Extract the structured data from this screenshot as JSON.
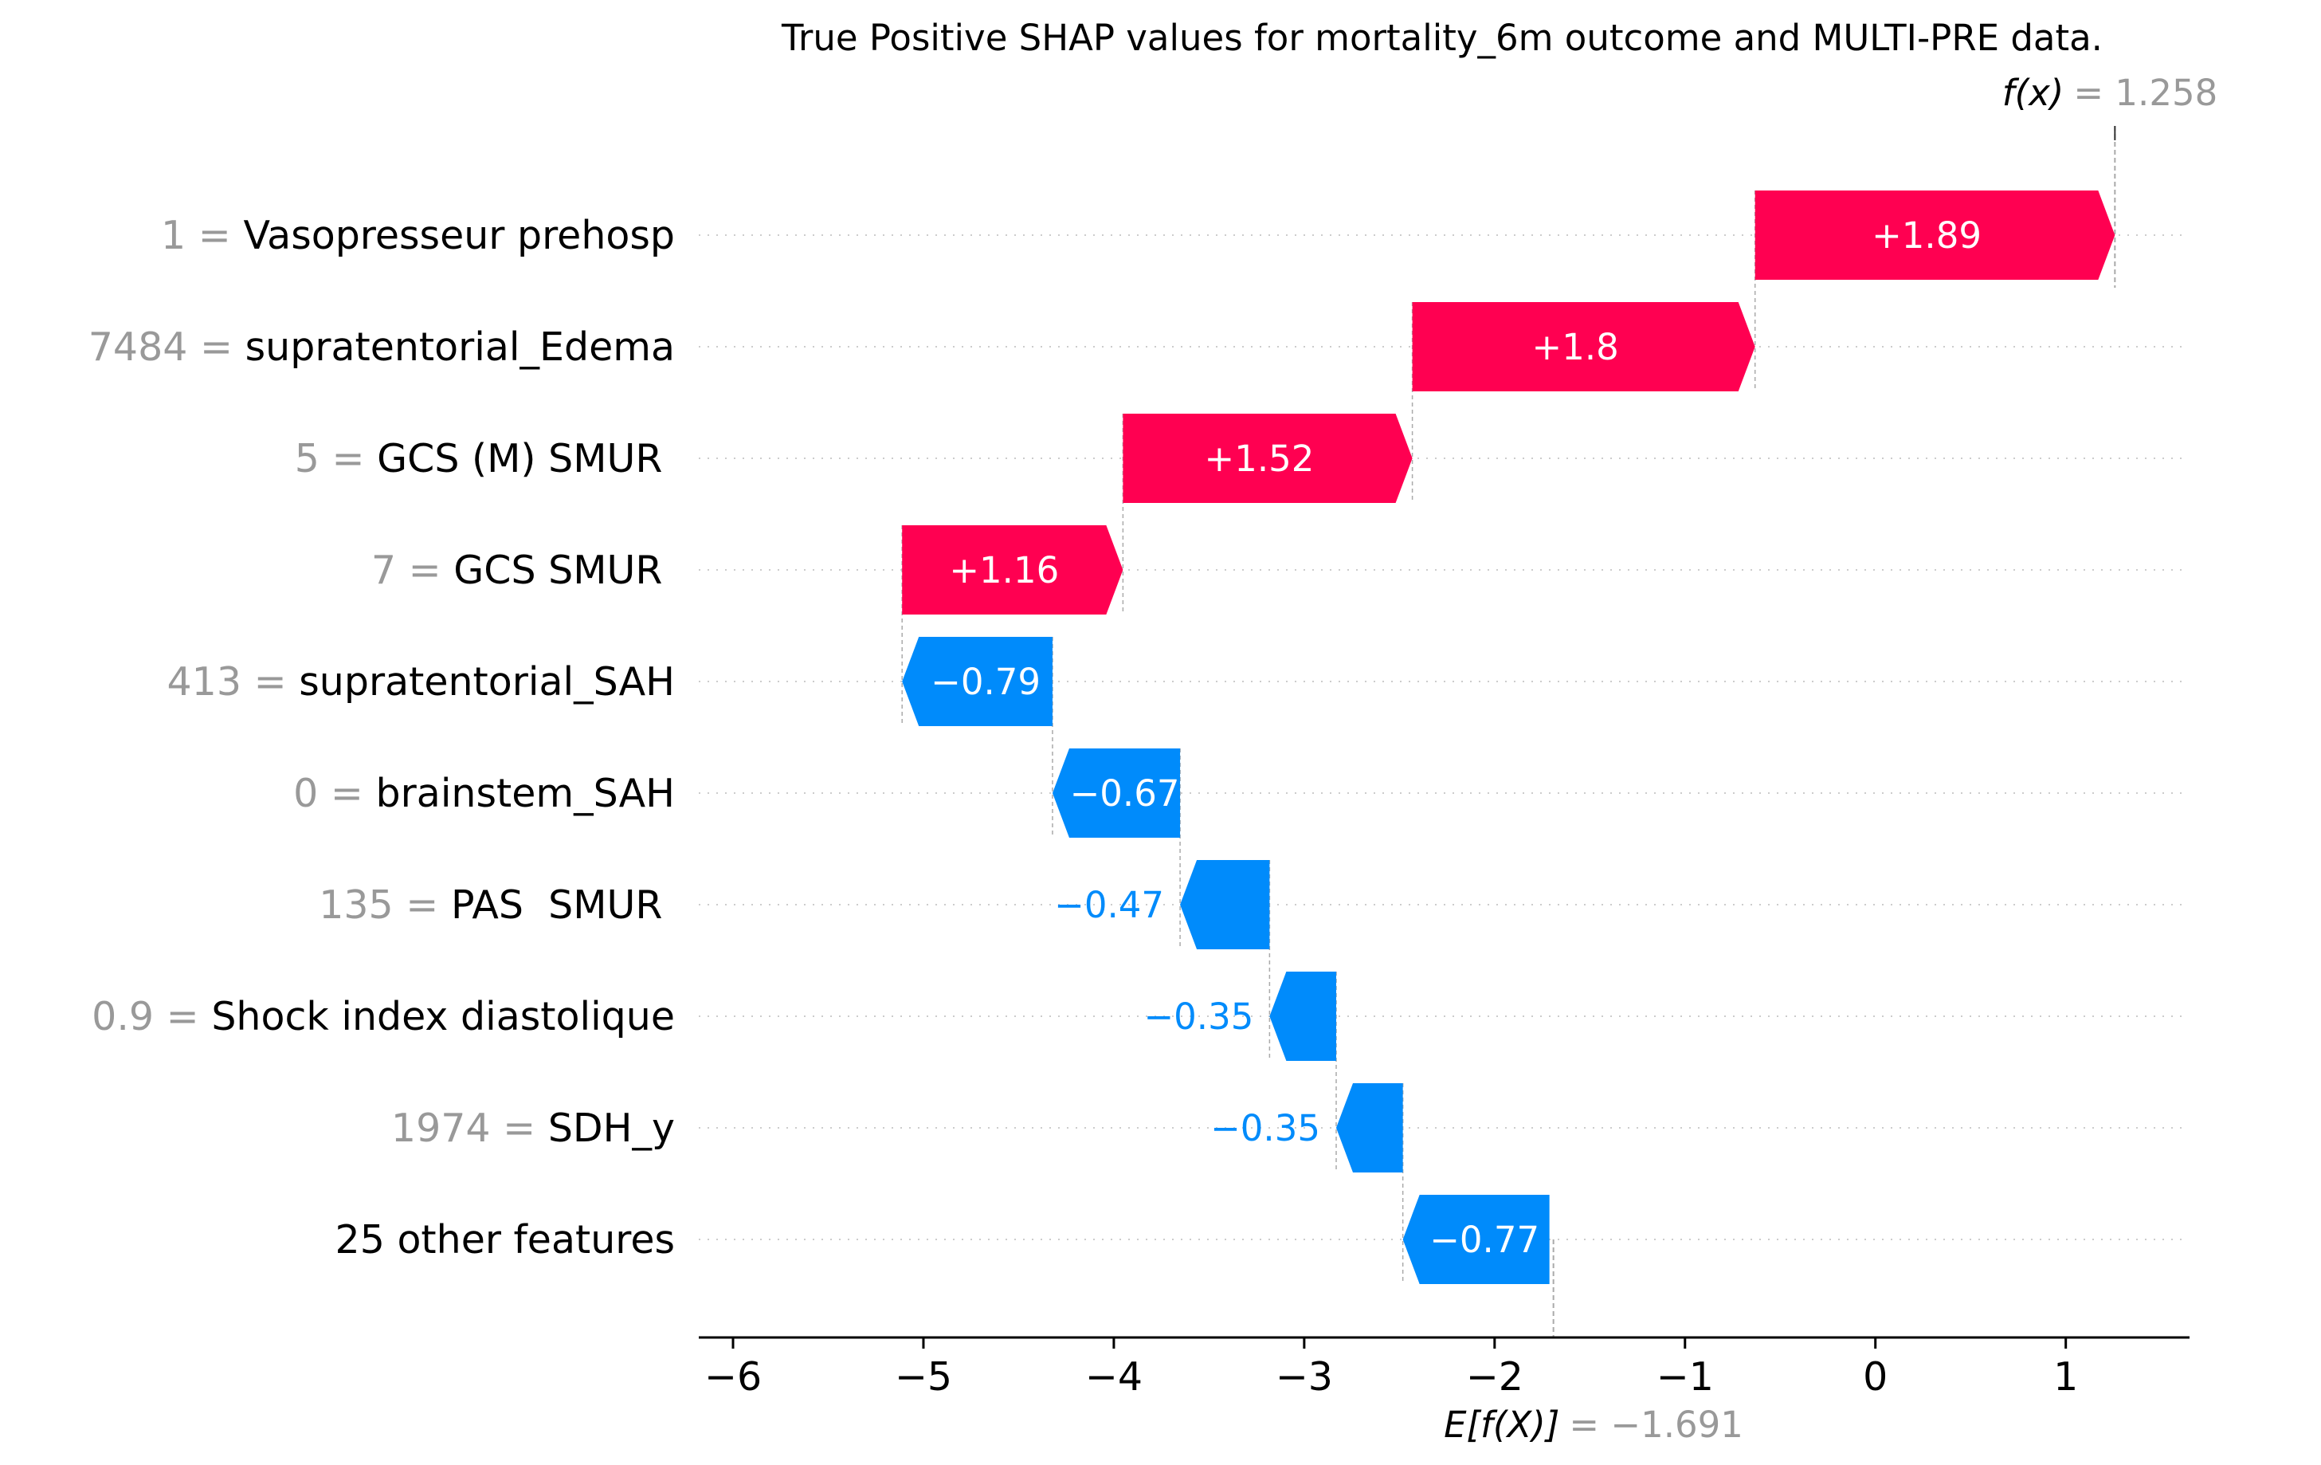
{
  "chart_data": {
    "type": "bar",
    "subtype": "waterfall",
    "title": "True Positive SHAP values for mortality_6m outcome and MULTI-PRE data.",
    "base_value": -1.691,
    "base_label": "E[f(X)]",
    "base_value_text": "= −1.691",
    "output_value": 1.258,
    "output_label": "f(x)",
    "output_value_text": "= 1.258",
    "xlim": [
      -6.18,
      1.65
    ],
    "xticks": [
      {
        "value": -6,
        "label": "−6"
      },
      {
        "value": -5,
        "label": "−5"
      },
      {
        "value": -4,
        "label": "−4"
      },
      {
        "value": -3,
        "label": "−3"
      },
      {
        "value": -2,
        "label": "−2"
      },
      {
        "value": -1,
        "label": "−1"
      },
      {
        "value": 0,
        "label": "0"
      },
      {
        "value": 1,
        "label": "1"
      }
    ],
    "grid": "dotted horizontal per row",
    "colors": {
      "positive": "#ff0051",
      "negative": "#008bfb",
      "positive_text": "#ffffff",
      "negative_text_inside": "#ffffff",
      "negative_text_outside": "#008bfb"
    },
    "features": [
      {
        "value": "1",
        "name": "Vasopresseur prehosp",
        "shap": 1.89,
        "label": "+1.89"
      },
      {
        "value": "7484",
        "name": "supratentorial_Edema",
        "shap": 1.8,
        "label": "+1.8"
      },
      {
        "value": "5",
        "name": "GCS (M) SMUR ",
        "shap": 1.52,
        "label": "+1.52"
      },
      {
        "value": "7",
        "name": "GCS SMUR ",
        "shap": 1.16,
        "label": "+1.16"
      },
      {
        "value": "413",
        "name": "supratentorial_SAH",
        "shap": -0.79,
        "label": "−0.79"
      },
      {
        "value": "0",
        "name": "brainstem_SAH",
        "shap": -0.67,
        "label": "−0.67"
      },
      {
        "value": "135",
        "name": "PAS  SMUR ",
        "shap": -0.47,
        "label": "−0.47"
      },
      {
        "value": "0.9",
        "name": "Shock index diastolique",
        "shap": -0.35,
        "label": "−0.35"
      },
      {
        "value": "1974",
        "name": "SDH_y",
        "shap": -0.35,
        "label": "−0.35"
      },
      {
        "value": "",
        "name": "25 other features",
        "shap": -0.77,
        "label": "−0.77"
      }
    ]
  }
}
